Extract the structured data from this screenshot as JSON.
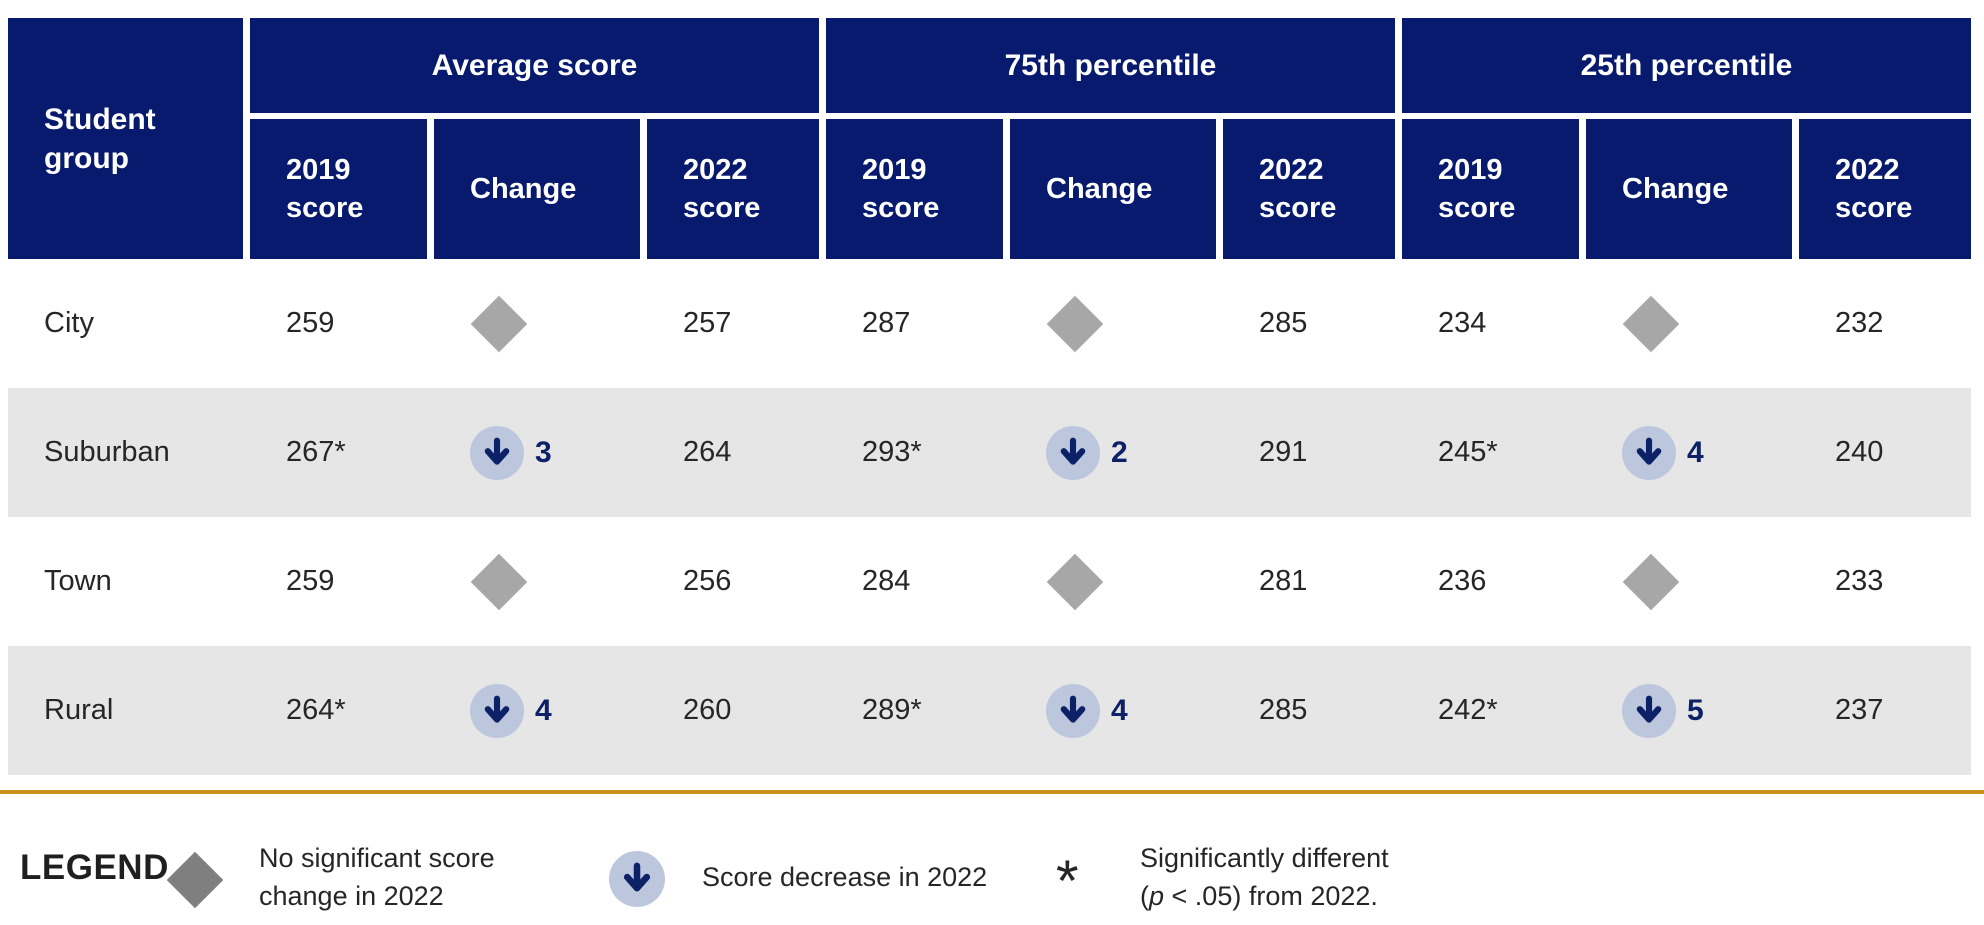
{
  "colors": {
    "navy": "#071a6e",
    "arrow_navy": "#0c2166",
    "light_blue": "#bcc7de",
    "diamond_gray": "#a7a7a7",
    "legend_diamond_gray": "#7f7f7f",
    "alt_row_gray": "#e6e6e6",
    "gold": "#c9921c",
    "text_dark": "#262626"
  },
  "chart_data": {
    "type": "table",
    "row_header": "Student group",
    "column_groups": [
      "Average score",
      "75th percentile",
      "25th percentile"
    ],
    "sub_columns": [
      "2019 score",
      "Change",
      "2022 score"
    ],
    "icon_meanings": {
      "diamond": "No significant score change in 2022",
      "down-arrow": "Score decrease in 2022",
      "asterisk": "Significantly different (p < .05) from 2022."
    },
    "rows": [
      {
        "label": "City",
        "cells": [
          "259",
          {
            "icon": "diamond"
          },
          "257",
          "287",
          {
            "icon": "diamond"
          },
          "285",
          "234",
          {
            "icon": "diamond"
          },
          "232"
        ]
      },
      {
        "label": "Suburban",
        "cells": [
          "267*",
          {
            "icon": "down-arrow",
            "value": "3"
          },
          "264",
          "293*",
          {
            "icon": "down-arrow",
            "value": "2"
          },
          "291",
          "245*",
          {
            "icon": "down-arrow",
            "value": "4"
          },
          "240"
        ]
      },
      {
        "label": "Town",
        "cells": [
          "259",
          {
            "icon": "diamond"
          },
          "256",
          "284",
          {
            "icon": "diamond"
          },
          "281",
          "236",
          {
            "icon": "diamond"
          },
          "233"
        ]
      },
      {
        "label": "Rural",
        "cells": [
          "264*",
          {
            "icon": "down-arrow",
            "value": "4"
          },
          "260",
          "289*",
          {
            "icon": "down-arrow",
            "value": "4"
          },
          "285",
          "242*",
          {
            "icon": "down-arrow",
            "value": "5"
          },
          "237"
        ]
      }
    ]
  },
  "legend": {
    "label": "LEGEND",
    "items": [
      {
        "icon": "diamond",
        "text": "No significant score change in 2022"
      },
      {
        "icon": "down-arrow",
        "text": "Score decrease in 2022"
      },
      {
        "icon": "asterisk",
        "symbol": "*",
        "line1": "Significantly different",
        "p_prefix": "(",
        "p_italic": "p",
        "p_suffix": " < .05) from 2022."
      }
    ]
  }
}
